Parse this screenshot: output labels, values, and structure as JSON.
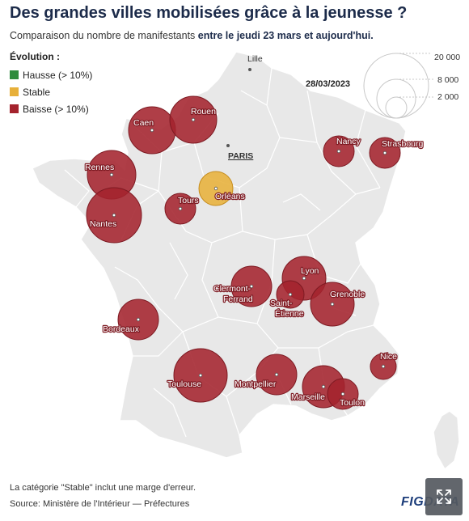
{
  "header": {
    "title": "Des grandes villes mobilisées grâce à la jeunesse ?",
    "subtitle_normal": "Comparaison du nombre de manifestants ",
    "subtitle_bold": "entre le jeudi 23 mars et aujourd'hui."
  },
  "legend": {
    "title": "Évolution :",
    "items": [
      {
        "label": "Hausse (> 10%)",
        "color": "#2e8b3c"
      },
      {
        "label": "Stable",
        "color": "#e7b03a"
      },
      {
        "label": "Baisse (> 10%)",
        "color": "#a4232d"
      }
    ]
  },
  "size_legend": {
    "date": "28/03/2023",
    "values": [
      "20 000",
      "8 000",
      "2 000"
    ]
  },
  "map_labels": {
    "lille": "Lille",
    "paris": "PARIS"
  },
  "cities": [
    {
      "name": "Caen",
      "status": "baisse"
    },
    {
      "name": "Rouen",
      "status": "baisse"
    },
    {
      "name": "Rennes",
      "status": "baisse"
    },
    {
      "name": "Nantes",
      "status": "baisse"
    },
    {
      "name": "Tours",
      "status": "baisse"
    },
    {
      "name": "Orléans",
      "status": "stable"
    },
    {
      "name": "Nancy",
      "status": "baisse"
    },
    {
      "name": "Strasbourg",
      "status": "baisse"
    },
    {
      "name": "Clermont-Ferrand",
      "status": "baisse"
    },
    {
      "name": "Lyon",
      "status": "baisse"
    },
    {
      "name": "Saint-Étienne",
      "status": "baisse"
    },
    {
      "name": "Grenoble",
      "status": "baisse"
    },
    {
      "name": "Bordeaux",
      "status": "baisse"
    },
    {
      "name": "Toulouse",
      "status": "baisse"
    },
    {
      "name": "Montpellier",
      "status": "baisse"
    },
    {
      "name": "Marseille",
      "status": "baisse"
    },
    {
      "name": "Toulon",
      "status": "baisse"
    },
    {
      "name": "Nice",
      "status": "baisse"
    }
  ],
  "footer": {
    "note": "La catégorie \"Stable\" inclut une marge d'erreur.",
    "source": "Source: Ministère de l'Intérieur — Préfectures",
    "logo": "FIGDATA"
  },
  "icons": {
    "expand": "expand-arrows-icon"
  }
}
